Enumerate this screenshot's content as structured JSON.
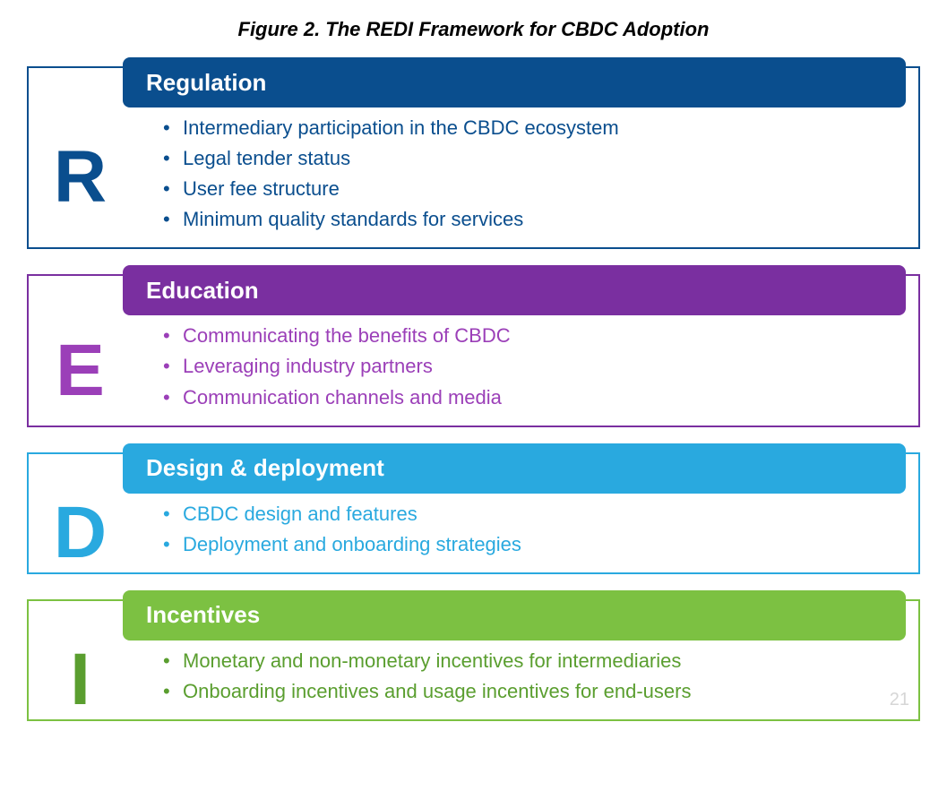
{
  "title": "Figure 2. The REDI Framework for CBDC Adoption",
  "page_number": "21",
  "blocks": [
    {
      "letter": "R",
      "heading": "Regulation",
      "header_bg": "#0a4e8e",
      "border_color": "#0a4e8e",
      "text_color": "#0a4e8e",
      "items": [
        "Intermediary participation in the CBDC ecosystem",
        "Legal tender status",
        "User fee structure",
        "Minimum quality standards for services"
      ]
    },
    {
      "letter": "E",
      "heading": "Education",
      "header_bg": "#7a2fa0",
      "border_color": "#7a2fa0",
      "text_color": "#9b3fb8",
      "items": [
        "Communicating the benefits of CBDC",
        "Leveraging industry partners",
        "Communication channels and media"
      ]
    },
    {
      "letter": "D",
      "heading": "Design & deployment",
      "header_bg": "#29a9df",
      "border_color": "#29a9df",
      "text_color": "#29a9df",
      "items": [
        "CBDC design and features",
        "Deployment and onboarding strategies"
      ]
    },
    {
      "letter": "I",
      "heading": "Incentives",
      "header_bg": "#7cc142",
      "border_color": "#7cc142",
      "text_color": "#5a9e2f",
      "items": [
        "Monetary and non-monetary incentives for intermediaries",
        "Onboarding incentives and usage incentives for end-users"
      ]
    }
  ]
}
